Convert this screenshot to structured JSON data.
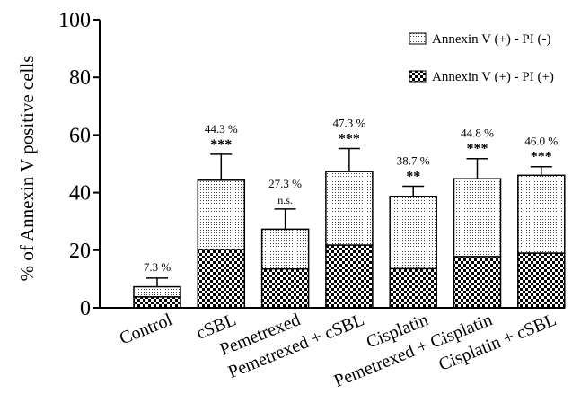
{
  "chart_data": {
    "type": "bar",
    "stacked": true,
    "ylabel": "% of Annexin V positive cells",
    "xlabel": "",
    "title": "",
    "ylim": [
      0,
      100
    ],
    "yticks": [
      "0",
      "20",
      "40",
      "60",
      "80",
      "100"
    ],
    "grid": false,
    "legend_placement": "top-right",
    "categories": [
      "Control",
      "cSBL",
      "Pemetrexed",
      "Pemetrexed + cSBL",
      "Cisplatin",
      "Pemetrexed + Cisplatin",
      "Cisplatin + cSBL"
    ],
    "series": [
      {
        "name": "Annexin V (+) - PI (+)",
        "pattern": "checkerboard",
        "values": [
          3.8,
          20.3,
          13.5,
          21.8,
          13.6,
          17.8,
          19.0
        ],
        "error": [
          1.6,
          2.8,
          3.5,
          5.2,
          6.6,
          7.8,
          6.0
        ]
      },
      {
        "name": "Annexin V (+) - PI (-)",
        "pattern": "dotted",
        "values": [
          3.5,
          24.0,
          13.8,
          25.5,
          25.1,
          27.0,
          27.0
        ],
        "error": [
          3.0,
          9.0,
          7.0,
          8.0,
          3.5,
          7.0,
          3.0
        ]
      }
    ],
    "totals": [
      7.3,
      44.3,
      27.3,
      47.3,
      38.7,
      44.8,
      46.0
    ],
    "total_labels": [
      "7.3 %",
      "44.3 %",
      "27.3 %",
      "47.3 %",
      "38.7 %",
      "44.8 %",
      "46.0 %"
    ],
    "significance": [
      "",
      "***",
      "n.s.",
      "***",
      "**",
      "***",
      "***"
    ]
  },
  "colors": {
    "axis": "#000000",
    "bar_outline": "#000000",
    "pattern_fill": "#000000",
    "background": "#ffffff"
  }
}
